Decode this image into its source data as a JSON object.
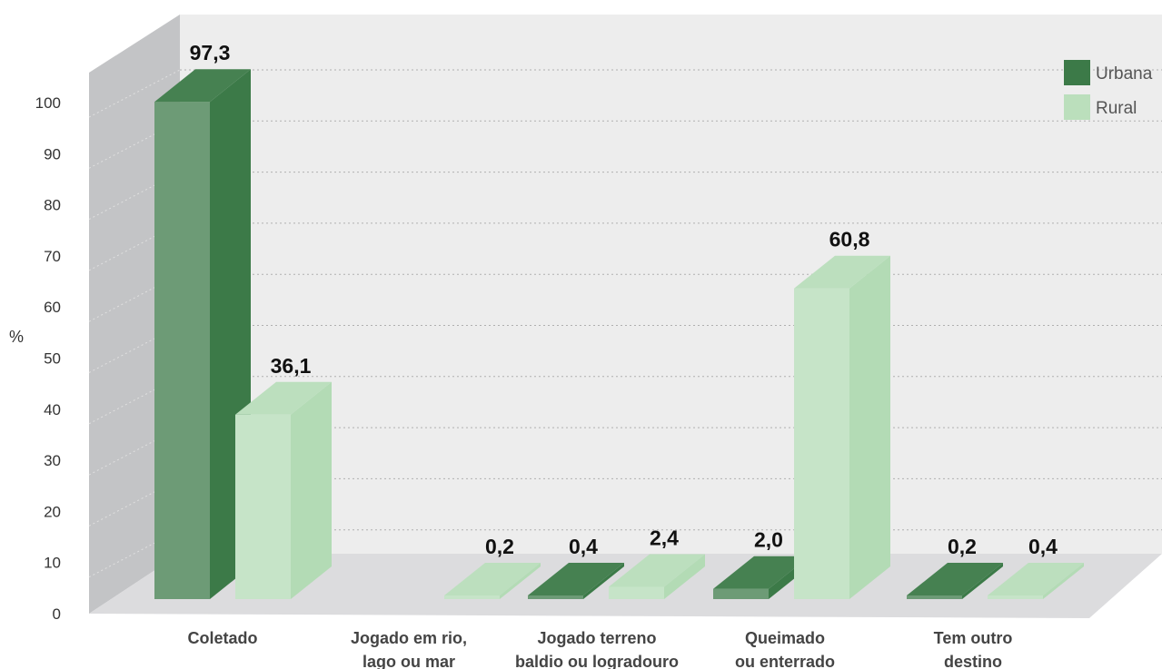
{
  "chart_data": {
    "type": "bar",
    "categories": [
      [
        "Coletado"
      ],
      [
        "Jogado em rio,",
        "lago ou mar"
      ],
      [
        "Jogado terreno",
        "baldio ou logradouro"
      ],
      [
        "Queimado",
        "ou enterrado"
      ],
      [
        "Tem outro",
        "destino"
      ]
    ],
    "series": [
      {
        "name": "Urbana",
        "values": [
          97.3,
          0.0,
          0.4,
          2.0,
          0.2
        ],
        "labels": [
          "97,3",
          null,
          "0,4",
          "2,0",
          "0,2"
        ],
        "color": "#3c7a48"
      },
      {
        "name": "Rural",
        "values": [
          36.1,
          0.2,
          2.4,
          60.8,
          0.4
        ],
        "labels": [
          "36,1",
          "0,2",
          "2,4",
          "60,8",
          "0,4"
        ],
        "color": "#b3dbb5"
      }
    ],
    "ylabel": "%",
    "yticks": [
      "0",
      "10",
      "20",
      "30",
      "40",
      "50",
      "60",
      "70",
      "80",
      "90",
      "100"
    ],
    "ylim": [
      0,
      100
    ],
    "grid": true,
    "legend_position": "top-right",
    "style": "3d"
  }
}
